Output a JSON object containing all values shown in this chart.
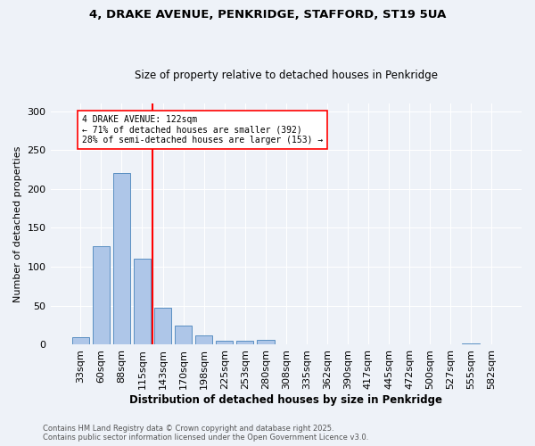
{
  "title_line1": "4, DRAKE AVENUE, PENKRIDGE, STAFFORD, ST19 5UA",
  "title_line2": "Size of property relative to detached houses in Penkridge",
  "xlabel": "Distribution of detached houses by size in Penkridge",
  "ylabel": "Number of detached properties",
  "categories": [
    "33sqm",
    "60sqm",
    "88sqm",
    "115sqm",
    "143sqm",
    "170sqm",
    "198sqm",
    "225sqm",
    "253sqm",
    "280sqm",
    "308sqm",
    "335sqm",
    "362sqm",
    "390sqm",
    "417sqm",
    "445sqm",
    "472sqm",
    "500sqm",
    "527sqm",
    "555sqm",
    "582sqm"
  ],
  "values": [
    10,
    127,
    220,
    110,
    48,
    25,
    12,
    5,
    5,
    6,
    0,
    0,
    1,
    0,
    0,
    0,
    0,
    0,
    0,
    2,
    0
  ],
  "bar_color": "#aec6e8",
  "bar_edge_color": "#5a8fc2",
  "red_line_x": 3.5,
  "annotation_text": "4 DRAKE AVENUE: 122sqm\n← 71% of detached houses are smaller (392)\n28% of semi-detached houses are larger (153) →",
  "annotation_box_color": "white",
  "annotation_box_edge": "red",
  "red_line_color": "red",
  "background_color": "#eef2f8",
  "footer_line1": "Contains HM Land Registry data © Crown copyright and database right 2025.",
  "footer_line2": "Contains public sector information licensed under the Open Government Licence v3.0.",
  "ylim": [
    0,
    310
  ],
  "yticks": [
    0,
    50,
    100,
    150,
    200,
    250,
    300
  ]
}
